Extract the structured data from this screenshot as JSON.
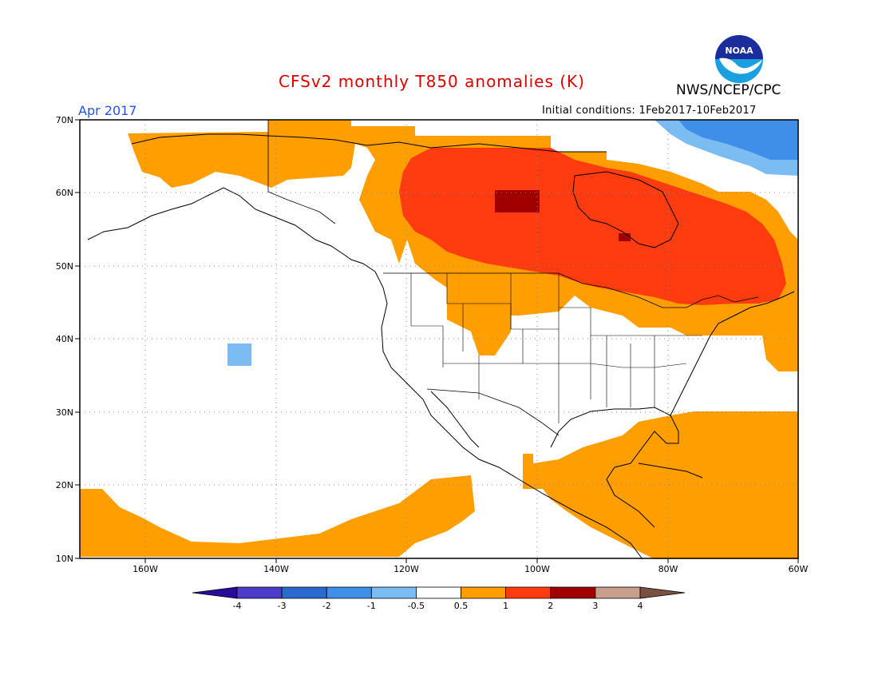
{
  "title": "CFSv2 monthly T850 anomalies (K)",
  "agency": "NWS/NCEP/CPC",
  "logo_text": "NOAA",
  "period": "Apr 2017",
  "initial_conditions": "Initial conditions: 1Feb2017-10Feb2017",
  "lat_labels": [
    "70N",
    "60N",
    "50N",
    "40N",
    "30N",
    "20N",
    "10N"
  ],
  "lon_labels": [
    "160W",
    "140W",
    "120W",
    "100W",
    "80W",
    "60W"
  ],
  "colorbar": {
    "labels": [
      "-4",
      "-3",
      "-2",
      "-1",
      "-0.5",
      "0.5",
      "1",
      "2",
      "3",
      "4"
    ],
    "colors": [
      "#2a0a9a",
      "#4b3ccc",
      "#2a6ad0",
      "#3f8ee8",
      "#7bbcf2",
      "#ffffff",
      "#ff9e00",
      "#ff3c10",
      "#a00000",
      "#c89e8c",
      "#7a5042"
    ]
  },
  "colors": {
    "anom_0_5_1": "#ff9e00",
    "anom_1_2": "#ff3c10",
    "anom_2_3": "#a00000",
    "anom_m1_m0_5": "#7bbcf2",
    "anom_m2_m1": "#3f8ee8",
    "title": "#dd0000",
    "period": "#2255ee"
  }
}
